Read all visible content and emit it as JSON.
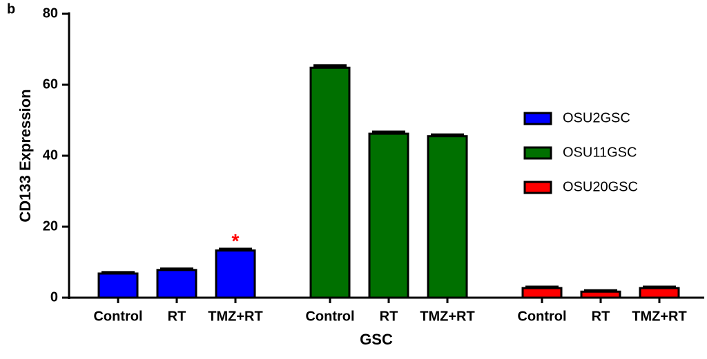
{
  "chart_data": {
    "type": "bar",
    "panel_label": "b",
    "x_label": "GSC",
    "y_label": "CD133 Expression",
    "categories": [
      "Control",
      "RT",
      "TMZ+RT"
    ],
    "series": [
      {
        "name": "OSU2GSC",
        "color": "#0000ff",
        "values": [
          6.8,
          7.8,
          13.3
        ],
        "errors": [
          0.3,
          0.3,
          0.4
        ]
      },
      {
        "name": "OSU11GSC",
        "color": "#007000",
        "values": [
          64.8,
          46.2,
          45.5
        ],
        "errors": [
          0.6,
          0.5,
          0.4
        ]
      },
      {
        "name": "OSU20GSC",
        "color": "#ff0000",
        "values": [
          2.7,
          1.7,
          2.7
        ],
        "errors": [
          0.3,
          0.3,
          0.3
        ]
      }
    ],
    "annotations": [
      {
        "text": "*",
        "series": 0,
        "category": 2,
        "color": "#ff0000"
      }
    ],
    "ylim": [
      0,
      80
    ],
    "yticks": [
      0,
      20,
      40,
      60,
      80
    ],
    "grid": false
  }
}
